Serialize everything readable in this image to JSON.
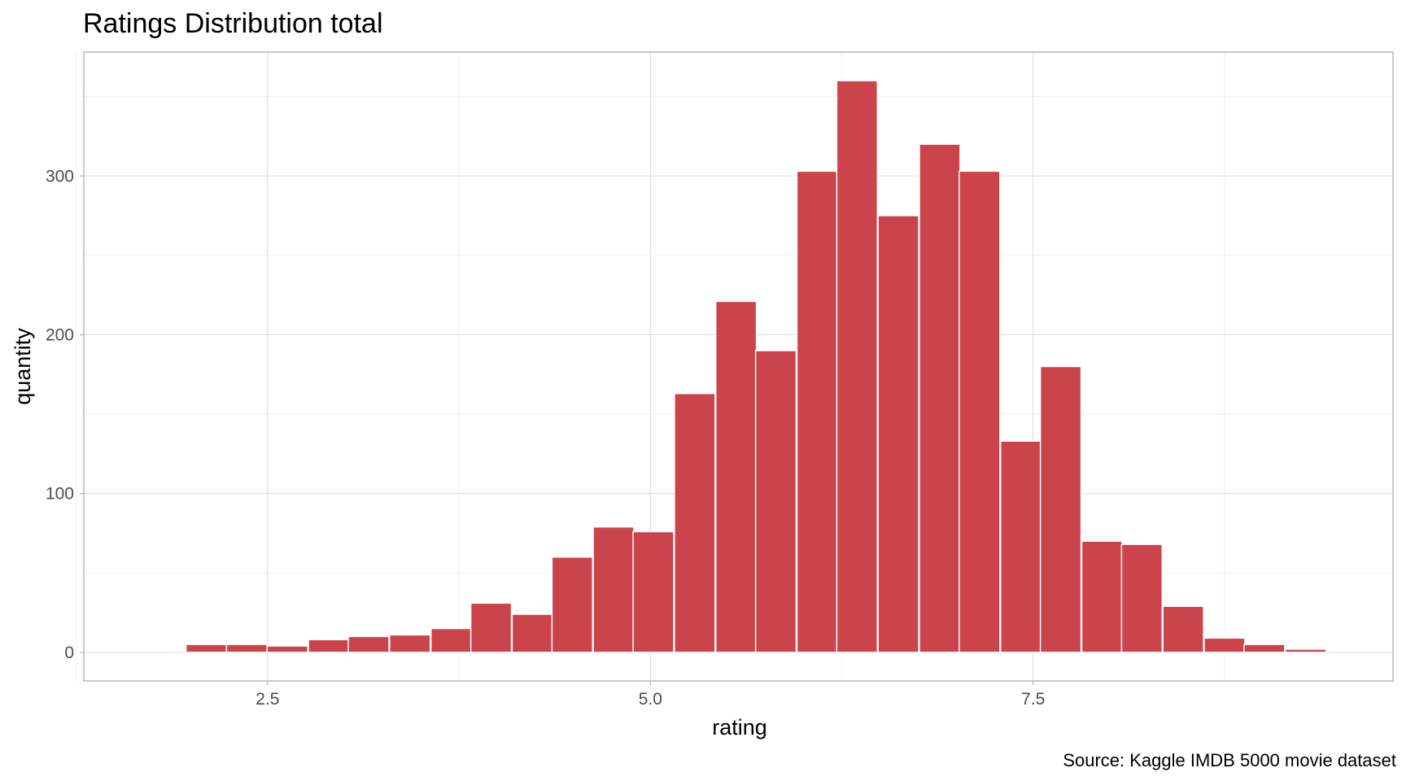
{
  "chart_data": {
    "type": "bar",
    "subtype": "histogram",
    "title": "Ratings Distribution total",
    "xlabel": "rating",
    "ylabel": "quantity",
    "caption": "Source: Kaggle IMDB 5000 movie dataset",
    "xlim": [
      1.3,
      9.85
    ],
    "ylim": [
      -18,
      378
    ],
    "x_ticks": [
      {
        "value": 2.5,
        "label": "2.5"
      },
      {
        "value": 5.0,
        "label": "5.0"
      },
      {
        "value": 7.5,
        "label": "7.5"
      }
    ],
    "y_ticks": [
      {
        "value": 0,
        "label": "0"
      },
      {
        "value": 100,
        "label": "100"
      },
      {
        "value": 200,
        "label": "200"
      },
      {
        "value": 300,
        "label": "300"
      }
    ],
    "x_minor": [
      1.25,
      3.75,
      6.25,
      8.75
    ],
    "y_minor": [
      50,
      150,
      250,
      350
    ],
    "bin_width": 0.2654,
    "bins": [
      {
        "x": 1.57,
        "count": 0
      },
      {
        "x": 2.1,
        "count": 5
      },
      {
        "x": 2.365,
        "count": 5
      },
      {
        "x": 2.63,
        "count": 4
      },
      {
        "x": 2.9,
        "count": 8
      },
      {
        "x": 3.16,
        "count": 10
      },
      {
        "x": 3.43,
        "count": 11
      },
      {
        "x": 3.7,
        "count": 15
      },
      {
        "x": 3.96,
        "count": 31
      },
      {
        "x": 4.23,
        "count": 24
      },
      {
        "x": 4.49,
        "count": 60
      },
      {
        "x": 4.76,
        "count": 79
      },
      {
        "x": 5.02,
        "count": 76
      },
      {
        "x": 5.29,
        "count": 163
      },
      {
        "x": 5.56,
        "count": 221
      },
      {
        "x": 5.82,
        "count": 190
      },
      {
        "x": 6.09,
        "count": 303
      },
      {
        "x": 6.35,
        "count": 360
      },
      {
        "x": 6.62,
        "count": 275
      },
      {
        "x": 6.89,
        "count": 320
      },
      {
        "x": 7.15,
        "count": 303
      },
      {
        "x": 7.42,
        "count": 133
      },
      {
        "x": 7.68,
        "count": 180
      },
      {
        "x": 7.95,
        "count": 70
      },
      {
        "x": 8.21,
        "count": 68
      },
      {
        "x": 8.48,
        "count": 29
      },
      {
        "x": 8.75,
        "count": 9
      },
      {
        "x": 9.01,
        "count": 5
      },
      {
        "x": 9.28,
        "count": 2
      }
    ],
    "grid": true,
    "legend": "none",
    "colors": {
      "bar_fill": "#cc444b",
      "bar_outline": "#ffffff",
      "panel_border": "#b3b3b3",
      "grid": "#dedede",
      "tick_text": "#4d4d4d"
    }
  }
}
